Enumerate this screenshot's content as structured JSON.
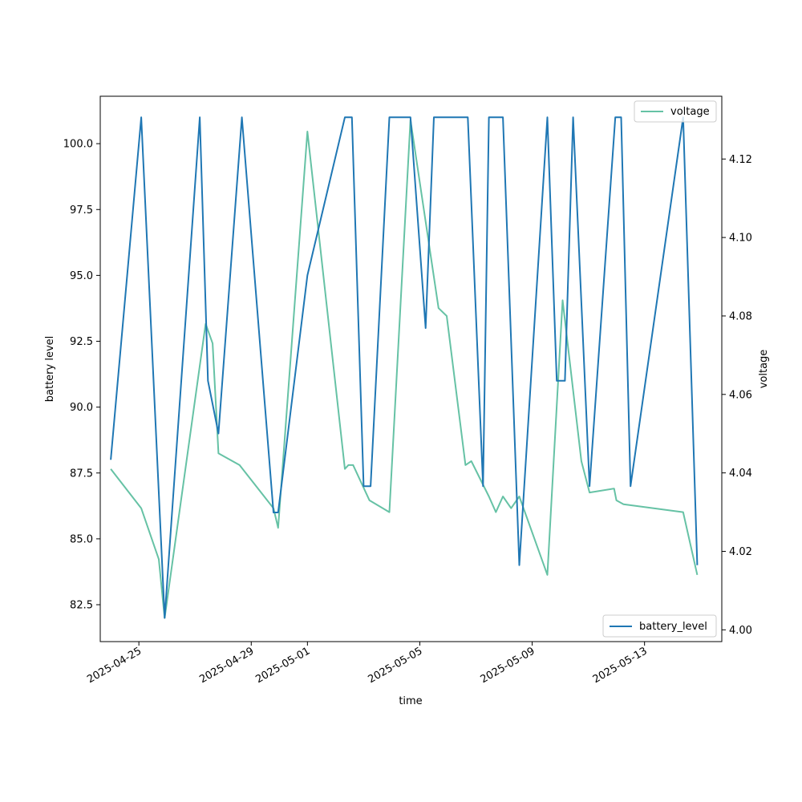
{
  "chart_data": {
    "type": "line",
    "xlabel": "time",
    "ylabel_left": "battery level",
    "ylabel_right": "voltage",
    "x_axis_type": "date",
    "xlim": [
      "2025-04-23T15:00",
      "2025-05-15T18:00"
    ],
    "x_ticks": [
      "2025-04-25",
      "2025-04-29",
      "2025-05-01",
      "2025-05-05",
      "2025-05-09",
      "2025-05-13"
    ],
    "ylim_left": [
      81.1,
      101.8
    ],
    "y_ticks_left": [
      "82.5",
      "85.0",
      "87.5",
      "90.0",
      "92.5",
      "95.0",
      "97.5",
      "100.0"
    ],
    "ylim_right": [
      3.997,
      4.136
    ],
    "y_ticks_right": [
      "4.00",
      "4.02",
      "4.04",
      "4.06",
      "4.08",
      "4.10",
      "4.12"
    ],
    "grid": false,
    "legend_voltage_position": "upper-right",
    "legend_battery_position": "lower-right",
    "series": [
      {
        "name": "battery_level",
        "axis": "left",
        "color": "#1f77b4",
        "x": [
          "2025-04-24T00:00",
          "2025-04-25T02:00",
          "2025-04-25T22:00",
          "2025-04-27T04:00",
          "2025-04-27T11:00",
          "2025-04-27T20:00",
          "2025-04-28T16:00",
          "2025-04-29T19:00",
          "2025-04-29T23:00",
          "2025-05-01T00:00",
          "2025-05-02T08:00",
          "2025-05-02T14:00",
          "2025-05-03T00:00",
          "2025-05-03T06:00",
          "2025-05-03T22:00",
          "2025-05-04T16:00",
          "2025-05-05T05:00",
          "2025-05-05T12:00",
          "2025-05-06T17:00",
          "2025-05-07T06:00",
          "2025-05-07T11:00",
          "2025-05-07T23:00",
          "2025-05-08T13:00",
          "2025-05-09T13:00",
          "2025-05-09T21:00",
          "2025-05-10T04:00",
          "2025-05-10T11:00",
          "2025-05-11T01:00",
          "2025-05-11T23:00",
          "2025-05-12T04:00",
          "2025-05-12T12:00",
          "2025-05-14T09:00",
          "2025-05-14T21:00"
        ],
        "values": [
          88,
          101,
          82,
          101,
          91,
          89,
          101,
          86,
          86,
          95,
          101,
          101,
          87,
          87,
          101,
          101,
          93,
          101,
          101,
          87,
          101,
          101,
          84,
          101,
          91,
          91,
          101,
          87,
          101,
          101,
          87,
          101,
          84
        ]
      },
      {
        "name": "voltage",
        "axis": "right",
        "color": "#66c2a5",
        "x": [
          "2025-04-24T00:00",
          "2025-04-25T02:00",
          "2025-04-25T17:00",
          "2025-04-25T22:00",
          "2025-04-27T09:00",
          "2025-04-27T15:00",
          "2025-04-27T20:00",
          "2025-04-28T14:00",
          "2025-04-29T19:00",
          "2025-04-29T23:00",
          "2025-05-01T00:00",
          "2025-05-02T08:00",
          "2025-05-02T11:00",
          "2025-05-02T15:00",
          "2025-05-03T05:00",
          "2025-05-03T22:00",
          "2025-05-04T16:00",
          "2025-05-05T16:00",
          "2025-05-05T23:00",
          "2025-05-06T15:00",
          "2025-05-06T20:00",
          "2025-05-07T11:00",
          "2025-05-07T17:00",
          "2025-05-07T23:00",
          "2025-05-08T06:00",
          "2025-05-08T13:00",
          "2025-05-09T13:00",
          "2025-05-10T02:00",
          "2025-05-10T18:00",
          "2025-05-11T01:00",
          "2025-05-11T22:00",
          "2025-05-12T00:00",
          "2025-05-12T06:00",
          "2025-05-14T09:00",
          "2025-05-14T21:00"
        ],
        "values": [
          4.041,
          4.031,
          4.018,
          4.003,
          4.078,
          4.073,
          4.045,
          4.042,
          4.031,
          4.026,
          4.127,
          4.041,
          4.042,
          4.042,
          4.033,
          4.03,
          4.13,
          4.082,
          4.08,
          4.042,
          4.043,
          4.034,
          4.03,
          4.034,
          4.031,
          4.034,
          4.014,
          4.084,
          4.043,
          4.035,
          4.036,
          4.033,
          4.032,
          4.03,
          4.014
        ]
      }
    ]
  }
}
